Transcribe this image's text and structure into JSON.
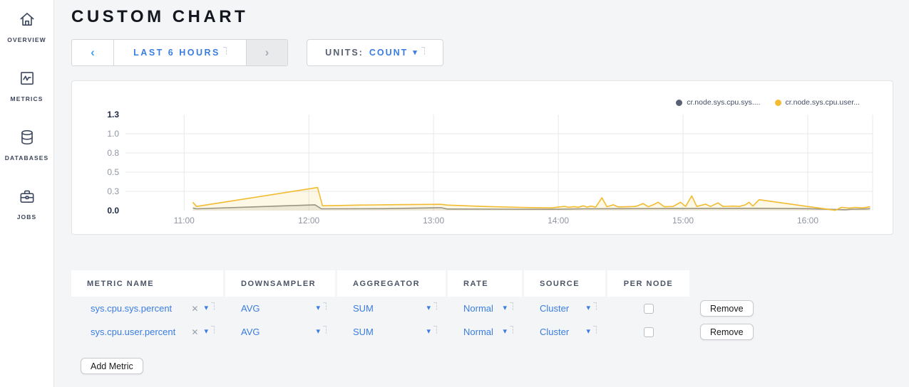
{
  "header": {
    "title": "CUSTOM CHART"
  },
  "sidebar": {
    "items": [
      {
        "label": "OVERVIEW",
        "icon": "home-icon"
      },
      {
        "label": "METRICS",
        "icon": "metrics-icon"
      },
      {
        "label": "DATABASES",
        "icon": "databases-icon"
      },
      {
        "label": "JOBS",
        "icon": "jobs-icon"
      }
    ]
  },
  "controls": {
    "time_range": {
      "prev_symbol": "‹",
      "label": "LAST 6 HOURS",
      "next_symbol": "›"
    },
    "units": {
      "label": "UNITS:",
      "value": "COUNT"
    }
  },
  "icons": {
    "caret": "▾",
    "remove_x": "✕"
  },
  "chart_data": {
    "type": "line",
    "title": "",
    "xlabel": "",
    "ylabel": "",
    "grid": true,
    "legend_position": "top-right",
    "xlim_hours": [
      10.53,
      16.52
    ],
    "ylim": [
      0,
      1.3
    ],
    "x_ticks": [
      {
        "hour": 11,
        "label": "11:00"
      },
      {
        "hour": 12,
        "label": "12:00"
      },
      {
        "hour": 13,
        "label": "13:00"
      },
      {
        "hour": 14,
        "label": "14:00"
      },
      {
        "hour": 15,
        "label": "15:00"
      },
      {
        "hour": 16,
        "label": "16:00"
      }
    ],
    "y_ticks": [
      {
        "value": 0.0,
        "label": "0.0",
        "bold": true
      },
      {
        "value": 0.3,
        "label": "0.3",
        "bold": false
      },
      {
        "value": 0.5,
        "label": "0.5",
        "bold": false
      },
      {
        "value": 0.8,
        "label": "0.8",
        "bold": false
      },
      {
        "value": 1.0,
        "label": "1.0",
        "bold": false
      },
      {
        "value": 1.3,
        "label": "1.3",
        "bold": true
      }
    ],
    "series": [
      {
        "name": "cr.node.sys.cpu.sys....",
        "color": "#8f8f8f",
        "legend_dot_color": "#586074",
        "fill": "rgba(140,140,140,0.16)",
        "points": [
          [
            11.07,
            0.04
          ],
          [
            11.1,
            0.028
          ],
          [
            12.05,
            0.09
          ],
          [
            12.1,
            0.028
          ],
          [
            12.6,
            0.03
          ],
          [
            13.06,
            0.045
          ],
          [
            13.11,
            0.025
          ],
          [
            13.5,
            0.022
          ],
          [
            13.95,
            0.02
          ],
          [
            14.2,
            0.028
          ],
          [
            14.5,
            0.03
          ],
          [
            15.0,
            0.032
          ],
          [
            15.6,
            0.035
          ],
          [
            16.0,
            0.03
          ],
          [
            16.22,
            0.018
          ],
          [
            16.3,
            0.012
          ],
          [
            16.36,
            0.022
          ],
          [
            16.45,
            0.025
          ],
          [
            16.5,
            0.03
          ]
        ]
      },
      {
        "name": "cr.node.sys.cpu.user...",
        "color": "#f2bb30",
        "legend_dot_color": "#f2bb30",
        "fill": "rgba(242,187,48,0.12)",
        "points": [
          [
            11.07,
            0.13
          ],
          [
            11.1,
            0.065
          ],
          [
            12.07,
            0.34
          ],
          [
            12.11,
            0.075
          ],
          [
            12.4,
            0.085
          ],
          [
            12.7,
            0.092
          ],
          [
            13.06,
            0.098
          ],
          [
            13.11,
            0.085
          ],
          [
            13.4,
            0.065
          ],
          [
            13.7,
            0.05
          ],
          [
            13.95,
            0.042
          ],
          [
            14.0,
            0.055
          ],
          [
            14.05,
            0.065
          ],
          [
            14.08,
            0.052
          ],
          [
            14.13,
            0.06
          ],
          [
            14.16,
            0.052
          ],
          [
            14.2,
            0.075
          ],
          [
            14.23,
            0.055
          ],
          [
            14.26,
            0.07
          ],
          [
            14.3,
            0.055
          ],
          [
            14.35,
            0.2
          ],
          [
            14.39,
            0.06
          ],
          [
            14.44,
            0.09
          ],
          [
            14.48,
            0.058
          ],
          [
            14.55,
            0.06
          ],
          [
            14.62,
            0.065
          ],
          [
            14.68,
            0.11
          ],
          [
            14.72,
            0.06
          ],
          [
            14.76,
            0.09
          ],
          [
            14.8,
            0.13
          ],
          [
            14.85,
            0.06
          ],
          [
            14.92,
            0.065
          ],
          [
            14.98,
            0.13
          ],
          [
            15.02,
            0.065
          ],
          [
            15.07,
            0.23
          ],
          [
            15.11,
            0.065
          ],
          [
            15.18,
            0.1
          ],
          [
            15.22,
            0.065
          ],
          [
            15.28,
            0.12
          ],
          [
            15.32,
            0.065
          ],
          [
            15.4,
            0.07
          ],
          [
            15.45,
            0.065
          ],
          [
            15.5,
            0.09
          ],
          [
            15.53,
            0.13
          ],
          [
            15.56,
            0.07
          ],
          [
            15.61,
            0.17
          ],
          [
            16.22,
            0.005
          ],
          [
            16.27,
            0.05
          ],
          [
            16.33,
            0.038
          ],
          [
            16.38,
            0.05
          ],
          [
            16.44,
            0.042
          ],
          [
            16.5,
            0.06
          ]
        ]
      }
    ]
  },
  "table": {
    "headers": [
      "METRIC NAME",
      "DOWNSAMPLER",
      "AGGREGATOR",
      "RATE",
      "SOURCE",
      "PER NODE"
    ],
    "rows": [
      {
        "metric": "sys.cpu.sys.percent",
        "downsampler": "AVG",
        "aggregator": "SUM",
        "rate": "Normal",
        "source": "Cluster",
        "per_node_checked": false
      },
      {
        "metric": "sys.cpu.user.percent",
        "downsampler": "AVG",
        "aggregator": "SUM",
        "rate": "Normal",
        "source": "Cluster",
        "per_node_checked": false
      }
    ],
    "remove_label": "Remove",
    "add_metric_label": "Add Metric"
  }
}
